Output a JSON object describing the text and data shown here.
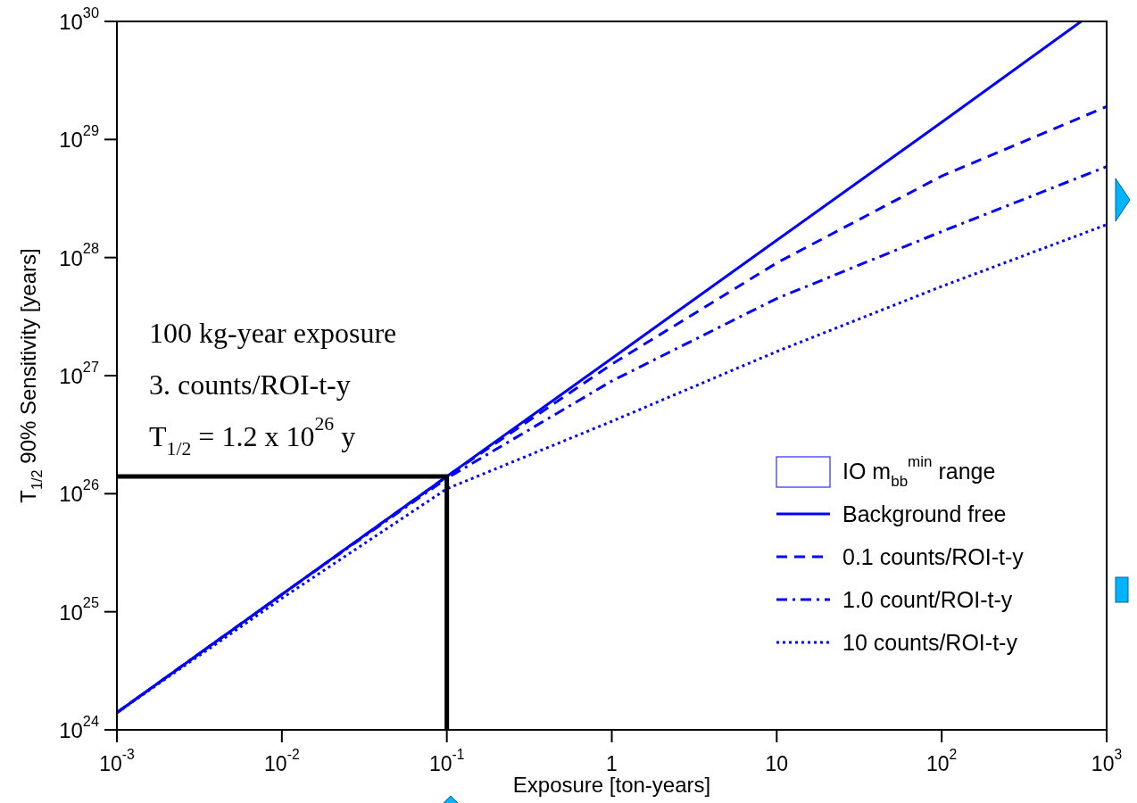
{
  "chart_data": {
    "type": "line",
    "xlabel": "Exposure [ton-years]",
    "ylabel": "T$_{1/2}$ 90% Sensitivity [years]",
    "log": "xy",
    "legend": "bottom right",
    "xlim": [
      0.001,
      1000
    ],
    "ylim": [
      1e+24,
      1e+30
    ],
    "xticks": [
      {
        "value": 0.001,
        "label": "10$^{-3}$"
      },
      {
        "value": 0.01,
        "label": "10$^{-2}$"
      },
      {
        "value": 0.1,
        "label": "10$^{-1}$"
      },
      1,
      10,
      {
        "value": 100,
        "label": "10$^{2}$"
      },
      {
        "value": 1000,
        "label": "10$^{3}$"
      }
    ],
    "yticks": [
      {
        "value": 1e+24,
        "label": "10$^{24}$"
      },
      {
        "value": 1e+25,
        "label": "10$^{25}$"
      },
      {
        "value": 1e+26,
        "label": "10$^{26}$"
      },
      {
        "value": 1e+27,
        "label": "10$^{27}$"
      },
      {
        "value": 1e+28,
        "label": "10$^{28}$"
      },
      {
        "value": 1e+29,
        "label": "10$^{29}$"
      },
      {
        "value": 1e+30,
        "label": "10$^{30}$"
      }
    ],
    "annotations": [
      "100 kg-year exposure",
      "3.   counts/ROI-t-y",
      "T$_{1/2}$ = 1.2 x 10$^{26}$ y"
    ],
    "series": [
      {
        "name": "IO m$_{bb}$$^{min}$ range",
        "type": "area",
        "color": "#0000ff"
      },
      {
        "name": "Background free",
        "color": "#0000ff",
        "line_style": "solid",
        "x": [
          0.001,
          0.01,
          0.1,
          1,
          10,
          100,
          700
        ],
        "values": [
          1.4e+24,
          1.4e+25,
          1.4e+26,
          1.4e+27,
          1.4e+28,
          1.4e+29,
          1e+30
        ]
      },
      {
        "name": "0.1 counts/ROI-t-y",
        "color": "#0000ff",
        "line_style": "dashed",
        "x": [
          0.001,
          0.01,
          0.1,
          1,
          10,
          100,
          1000
        ],
        "values": [
          1.4e+24,
          1.4e+25,
          1.4e+26,
          1.25e+27,
          9e+27,
          4.9e+28,
          1.9e+29
        ]
      },
      {
        "name": "1.0 count/ROI-t-y",
        "color": "#0000ff",
        "line_style": "dashdot",
        "x": [
          0.001,
          0.01,
          0.1,
          1,
          10,
          100,
          1000
        ],
        "values": [
          1.4e+24,
          1.4e+25,
          1.35e+26,
          9e+26,
          4.5e+27,
          1.66e+28,
          5.9e+28
        ]
      },
      {
        "name": "10 counts/ROI-t-y",
        "color": "#0000ff",
        "line_style": "dotted",
        "x": [
          0.001,
          0.01,
          0.1,
          1,
          10,
          100,
          1000
        ],
        "values": [
          1.4e+24,
          1.3e+25,
          1.1e+26,
          4.1e+26,
          1.6e+27,
          5.7e+27,
          1.9e+28
        ]
      },
      {
        "color": "#000000",
        "line_style": "solid",
        "x": [
          0.001,
          0.1,
          0.1
        ],
        "values": [
          1.4e+26,
          1.4e+26,
          1e+24
        ]
      }
    ]
  }
}
